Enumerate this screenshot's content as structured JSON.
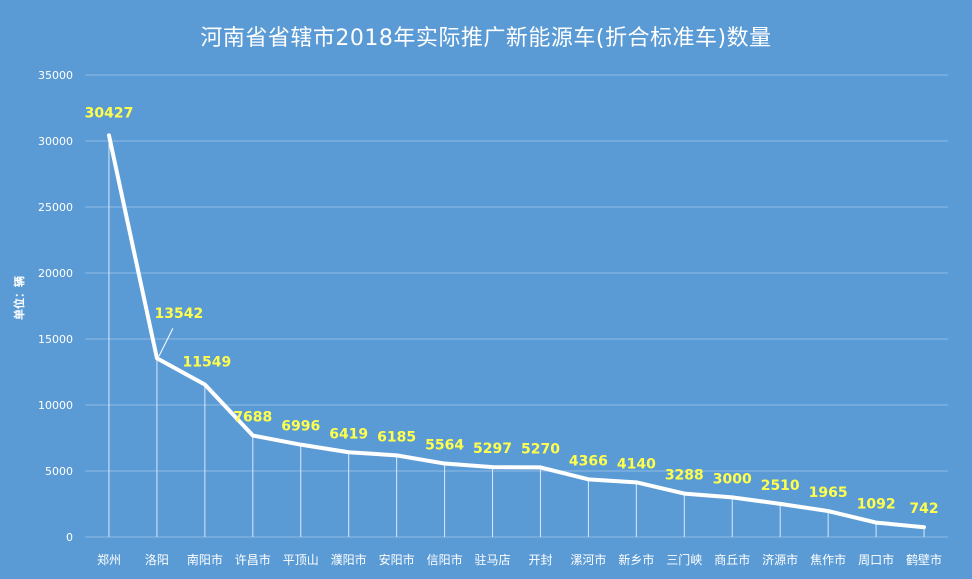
{
  "chart_data": {
    "type": "line",
    "title": "河南省省辖市2018年实际推广新能源车(折合标准车)数量",
    "xlabel": "",
    "ylabel": "单位：辆",
    "ylim": [
      0,
      35000
    ],
    "yticks": [
      0,
      5000,
      10000,
      15000,
      20000,
      25000,
      30000,
      35000
    ],
    "grid": true,
    "legend": "none",
    "categories": [
      "郑州",
      "洛阳",
      "南阳市",
      "许昌市",
      "平顶山",
      "濮阳市",
      "安阳市",
      "信阳市",
      "驻马店",
      "开封",
      "漯河市",
      "新乡市",
      "三门峡",
      "商丘市",
      "济源市",
      "焦作市",
      "周口市",
      "鹤壁市"
    ],
    "series": [
      {
        "values": [
          30427,
          13542,
          11549,
          7688,
          6996,
          6419,
          6185,
          5564,
          5297,
          5270,
          4366,
          4140,
          3288,
          3000,
          2510,
          1965,
          1092,
          742
        ]
      }
    ],
    "colors": {
      "background": "#5b9bd5",
      "line": "#ffffff",
      "data_label": "#ffff4d",
      "text": "#ffffff",
      "grid": "#8fbbe3"
    }
  }
}
